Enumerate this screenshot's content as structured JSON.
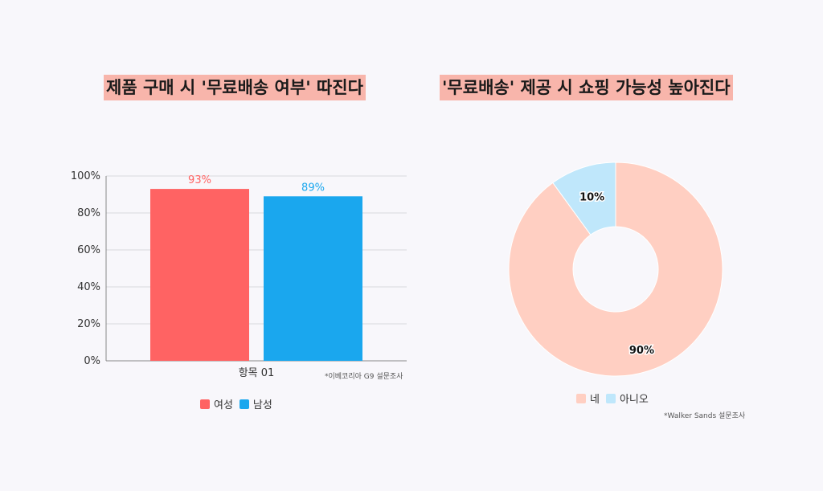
{
  "left": {
    "title": "제품 구매 시 '무료배송 여부' 따진다",
    "source": "*이베코리아 G9 설문조사",
    "legend": [
      {
        "label": "여성",
        "color": "#ff6363"
      },
      {
        "label": "남성",
        "color": "#1aa7ee"
      }
    ]
  },
  "right": {
    "title": "'무료배송' 제공 시 쇼핑 가능성 높아진다",
    "source": "*Walker Sands 설문조사",
    "legend": [
      {
        "label": "네",
        "color": "#ffcfc2"
      },
      {
        "label": "아니오",
        "color": "#bfe7fb"
      }
    ]
  },
  "chart_data": [
    {
      "type": "bar",
      "title": "제품 구매 시 '무료배송 여부' 따진다",
      "categories": [
        "항목 01"
      ],
      "series": [
        {
          "name": "여성",
          "values": [
            93
          ],
          "color": "#ff6363",
          "label": "93%"
        },
        {
          "name": "남성",
          "values": [
            89
          ],
          "color": "#1aa7ee",
          "label": "89%"
        }
      ],
      "ylim": [
        0,
        100
      ],
      "yticks": [
        "0%",
        "20%",
        "40%",
        "60%",
        "80%",
        "100%"
      ],
      "grid": true,
      "legend": "bottom"
    },
    {
      "type": "pie",
      "donut": true,
      "title": "'무료배송' 제공 시 쇼핑 가능성 높아진다",
      "slices": [
        {
          "name": "네",
          "value": 90,
          "label": "90%",
          "color": "#ffcfc2"
        },
        {
          "name": "아니오",
          "value": 10,
          "label": "10%",
          "color": "#bfe7fb"
        }
      ],
      "legend": "bottom"
    }
  ]
}
